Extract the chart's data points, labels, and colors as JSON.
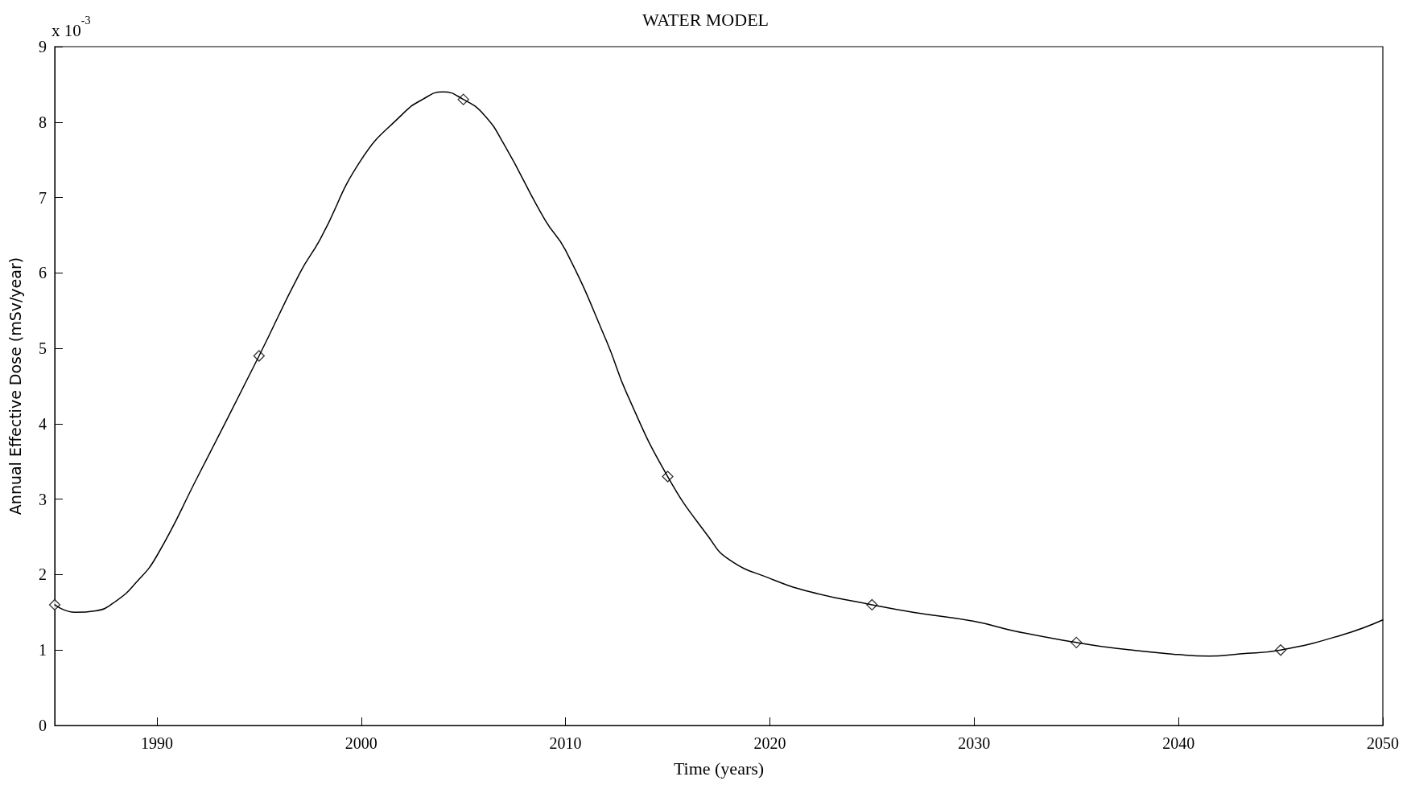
{
  "chart_data": {
    "type": "line",
    "title": "WATER MODEL",
    "xlabel": "Time (years)",
    "ylabel": "Annual Effective Dose (mSv/year)",
    "annotations": [
      "x 10$^{-3}$"
    ],
    "series": [
      {
        "color": "#000000",
        "marker": "none",
        "x": [
          1985,
          1986,
          1987,
          1988,
          1989,
          1990,
          1992,
          1995,
          1997,
          1998,
          2000,
          2002,
          2003,
          2004,
          2005,
          2006,
          2007,
          2009,
          2010,
          2012,
          2013,
          2015,
          2017,
          2018,
          2020,
          2022,
          2025,
          2027,
          2030,
          2032,
          2035,
          2037,
          2040,
          2041.5,
          2043,
          2045,
          2048,
          2050
        ],
        "values": [
          1.6,
          1.5,
          1.52,
          1.65,
          1.9,
          2.25,
          3.3,
          4.9,
          6.0,
          6.45,
          7.5,
          8.1,
          8.3,
          8.4,
          8.3,
          8.1,
          7.7,
          6.7,
          6.3,
          5.1,
          4.4,
          3.3,
          2.5,
          2.2,
          1.95,
          1.77,
          1.6,
          1.5,
          1.38,
          1.25,
          1.1,
          1.02,
          0.94,
          0.92,
          0.95,
          1.0,
          1.2,
          1.4
        ]
      },
      {
        "type": "scatter",
        "color": "#000000",
        "marker": "diamond",
        "x": [
          1985,
          1995,
          2005,
          2015,
          2025,
          2035,
          2045
        ],
        "values": [
          1.6,
          4.9,
          8.3,
          3.3,
          1.6,
          1.1,
          1.0
        ]
      }
    ],
    "xlim": [
      1985,
      2050
    ],
    "xticks": [
      1990,
      2000,
      2010,
      2020,
      2030,
      2040,
      2050
    ],
    "ylim": [
      0,
      9
    ],
    "yticks": [
      0,
      1,
      2,
      3,
      4,
      5,
      6,
      7,
      8,
      9
    ],
    "grid": false
  }
}
